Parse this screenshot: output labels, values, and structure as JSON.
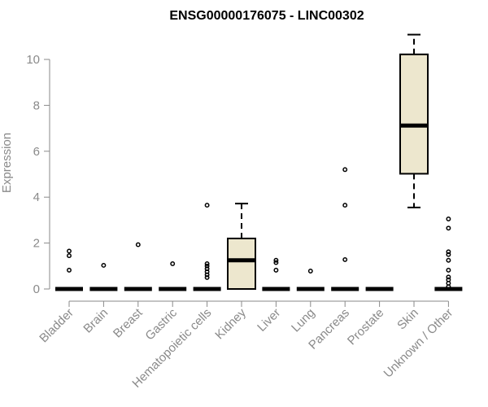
{
  "chart_data": {
    "type": "boxplot",
    "title": "ENSG00000176075 - LINC00302",
    "xlabel": "",
    "ylabel": "Expression",
    "ylim": [
      0,
      11
    ],
    "yticks": [
      0,
      2,
      4,
      6,
      8,
      10
    ],
    "grid": false,
    "box_fill": "#ede7ce",
    "categories": [
      "Bladder",
      "Brain",
      "Breast",
      "Gastric",
      "Hematopoietic cells",
      "Kidney",
      "Liver",
      "Lung",
      "Pancreas",
      "Prostate",
      "Skin",
      "Unknown / Other"
    ],
    "boxes": [
      {
        "category": "Bladder",
        "min": 0,
        "q1": 0,
        "median": 0,
        "q3": 0,
        "max": 0,
        "outliers": [
          0.82,
          1.45,
          1.65
        ]
      },
      {
        "category": "Brain",
        "min": 0,
        "q1": 0,
        "median": 0,
        "q3": 0,
        "max": 0,
        "outliers": [
          1.03
        ]
      },
      {
        "category": "Breast",
        "min": 0,
        "q1": 0,
        "median": 0,
        "q3": 0,
        "max": 0,
        "outliers": [
          1.93
        ]
      },
      {
        "category": "Gastric",
        "min": 0,
        "q1": 0,
        "median": 0,
        "q3": 0,
        "max": 0,
        "outliers": [
          1.1
        ]
      },
      {
        "category": "Hematopoietic cells",
        "min": 0,
        "q1": 0,
        "median": 0,
        "q3": 0,
        "max": 0,
        "outliers": [
          0.5,
          0.62,
          0.75,
          0.88,
          1.0,
          1.1,
          3.65
        ]
      },
      {
        "category": "Kidney",
        "min": 0,
        "q1": 0,
        "median": 1.25,
        "q3": 2.2,
        "max": 3.72,
        "outliers": []
      },
      {
        "category": "Liver",
        "min": 0,
        "q1": 0,
        "median": 0,
        "q3": 0,
        "max": 0,
        "outliers": [
          0.82,
          1.15,
          1.25
        ]
      },
      {
        "category": "Lung",
        "min": 0,
        "q1": 0,
        "median": 0,
        "q3": 0,
        "max": 0,
        "outliers": [
          0.78
        ]
      },
      {
        "category": "Pancreas",
        "min": 0,
        "q1": 0,
        "median": 0,
        "q3": 0,
        "max": 0,
        "outliers": [
          1.28,
          3.65,
          5.2
        ]
      },
      {
        "category": "Prostate",
        "min": 0,
        "q1": 0,
        "median": 0,
        "q3": 0,
        "max": 0,
        "outliers": []
      },
      {
        "category": "Skin",
        "min": 3.55,
        "q1": 5.02,
        "median": 7.12,
        "q3": 10.22,
        "max": 11.08,
        "outliers": []
      },
      {
        "category": "Unknown / Other",
        "min": 0,
        "q1": 0,
        "median": 0,
        "q3": 0,
        "max": 0,
        "outliers": [
          0.1,
          0.25,
          0.4,
          0.52,
          0.82,
          1.25,
          1.5,
          1.62,
          2.65,
          3.05
        ]
      }
    ]
  }
}
